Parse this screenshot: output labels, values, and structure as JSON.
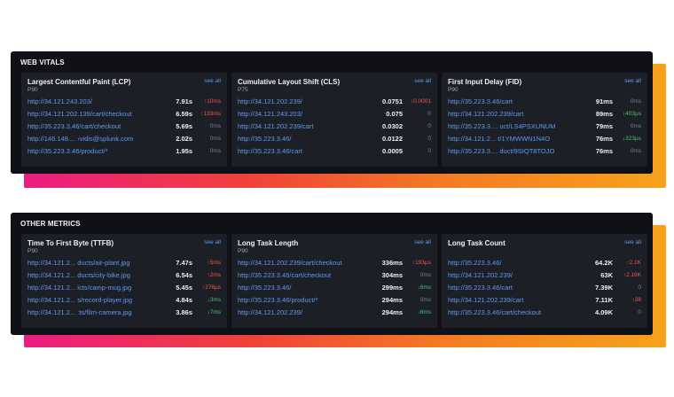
{
  "sections": [
    {
      "title": "WEB VITALS",
      "panels": [
        {
          "title": "Largest Contentful Paint (LCP)",
          "subtitle": "P90",
          "see_all": "see all",
          "rows": [
            {
              "url": "http://34.121.243.203/",
              "value": "7.91s",
              "delta": "↑10ms",
              "trend": "up"
            },
            {
              "url": "http://34.121.202.139/cart/checkout",
              "value": "6.59s",
              "delta": "↑133ms",
              "trend": "up"
            },
            {
              "url": "http://35.223.3.46/cart/checkout",
              "value": "5.69s",
              "delta": "0ms",
              "trend": "flat"
            },
            {
              "url": "http://146.148.... ›vidis@splunk.com",
              "value": "2.02s",
              "delta": "0ms",
              "trend": "flat"
            },
            {
              "url": "http://35.223.3.46/product/*",
              "value": "1.95s",
              "delta": "0ms",
              "trend": "flat"
            }
          ]
        },
        {
          "title": "Cumulative Layout Shift (CLS)",
          "subtitle": "P75",
          "see_all": "see all",
          "rows": [
            {
              "url": "http://34.121.202.239/",
              "value": "0.0751",
              "delta": "↑0.0001",
              "trend": "up"
            },
            {
              "url": "http://34.121.243.203/",
              "value": "0.075",
              "delta": "0",
              "trend": "flat"
            },
            {
              "url": "http://34.121.202.239/cart",
              "value": "0.0302",
              "delta": "0",
              "trend": "flat"
            },
            {
              "url": "http://35.223.3.46/",
              "value": "0.0122",
              "delta": "0",
              "trend": "flat"
            },
            {
              "url": "http://35.223.3.46/cart",
              "value": "0.0005",
              "delta": "0",
              "trend": "flat"
            }
          ]
        },
        {
          "title": "First Input Delay (FID)",
          "subtitle": "P90",
          "see_all": "see all",
          "rows": [
            {
              "url": "http://35.223.3.46/cart",
              "value": "91ms",
              "delta": "0ms",
              "trend": "flat"
            },
            {
              "url": "http://34.121.202.239/cart",
              "value": "89ms",
              "delta": "↓403µs",
              "trend": "down"
            },
            {
              "url": "http://35.223.3.... uct/LS4PSXUNUM",
              "value": "79ms",
              "delta": "0ms",
              "trend": "flat"
            },
            {
              "url": "http://34.121.2... t/1YMWWN1N4O",
              "value": "76ms",
              "delta": "↓323µs",
              "trend": "down"
            },
            {
              "url": "http://35.223.3.... duct/9SIQT8TOJO",
              "value": "76ms",
              "delta": "0ms",
              "trend": "flat"
            }
          ]
        }
      ]
    },
    {
      "title": "OTHER METRICS",
      "panels": [
        {
          "title": "Time To First Byte (TTFB)",
          "subtitle": "P90",
          "see_all": "see all",
          "rows": [
            {
              "url": "http://34.121.2... ducts/air-plant.jpg",
              "value": "7.47s",
              "delta": "↑5ms",
              "trend": "up"
            },
            {
              "url": "http://34.121.2... ducts/city-bike.jpg",
              "value": "6.54s",
              "delta": "↑2ms",
              "trend": "up"
            },
            {
              "url": "http://34.121.2... icts/camp-mug.jpg",
              "value": "5.45s",
              "delta": "↑276µs",
              "trend": "up"
            },
            {
              "url": "http://34.121.2... s/record-player.jpg",
              "value": "4.84s",
              "delta": "↓3ms",
              "trend": "down"
            },
            {
              "url": "http://34.121.2... :ts/film-camera.jpg",
              "value": "3.86s",
              "delta": "↓7ms",
              "trend": "down"
            }
          ]
        },
        {
          "title": "Long Task Length",
          "subtitle": "P90",
          "see_all": "see all",
          "rows": [
            {
              "url": "http://34.121.202.239/cart/checkout",
              "value": "336ms",
              "delta": "↑193µs",
              "trend": "up"
            },
            {
              "url": "http://35.223.3.46/cart/checkout",
              "value": "304ms",
              "delta": "0ms",
              "trend": "flat"
            },
            {
              "url": "http://35.223.3.46/",
              "value": "299ms",
              "delta": "↓6ms",
              "trend": "down"
            },
            {
              "url": "http://35.223.3.46/product/*",
              "value": "294ms",
              "delta": "0ms",
              "trend": "flat"
            },
            {
              "url": "http://34.121.202.239/",
              "value": "294ms",
              "delta": "↓6ms",
              "trend": "down"
            }
          ]
        },
        {
          "title": "Long Task Count",
          "subtitle": "",
          "see_all": "see all",
          "rows": [
            {
              "url": "http://35.223.3.46/",
              "value": "64.2K",
              "delta": "↑2.1K",
              "trend": "up"
            },
            {
              "url": "http://34.121.202.239/",
              "value": "63K",
              "delta": "↑2.16K",
              "trend": "up"
            },
            {
              "url": "http://35.223.3.46/cart",
              "value": "7.39K",
              "delta": "0",
              "trend": "flat"
            },
            {
              "url": "http://34.121.202.239/cart",
              "value": "7.11K",
              "delta": "↑38",
              "trend": "up"
            },
            {
              "url": "http://35.223.3.46/cart/checkout",
              "value": "4.09K",
              "delta": "0",
              "trend": "flat"
            }
          ]
        }
      ]
    }
  ]
}
